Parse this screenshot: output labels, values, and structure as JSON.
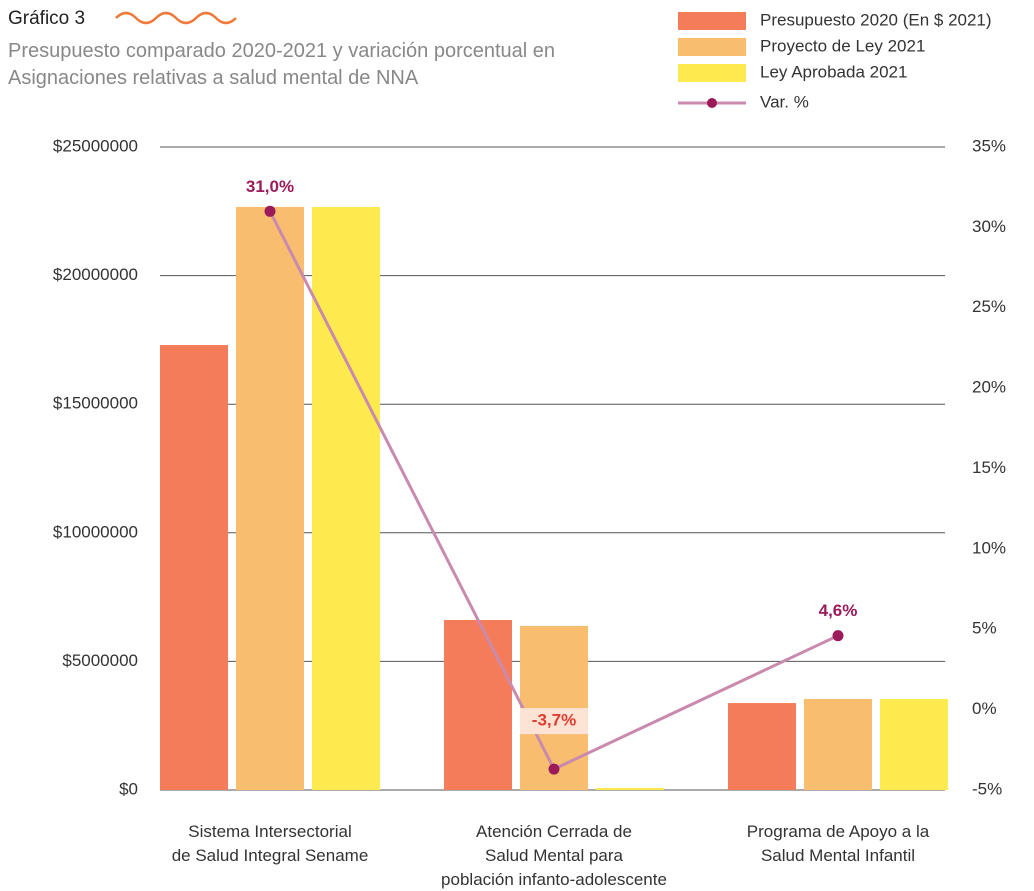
{
  "chart_data": {
    "type": "bar",
    "title": "Gráfico 3",
    "subtitle": "Presupuesto comparado 2020-2021 y variación porcentual en Asignaciones relativas a salud mental de NNA",
    "categories": [
      "Sistema Intersectorial\nde Salud Integral Sename",
      "Atención Cerrada de\nSalud Mental para\npoblación infanto-adolescente",
      "Programa de Apoyo a la\nSalud Mental Infantil"
    ],
    "series": [
      {
        "name": "Presupuesto 2020 (En $ 2021)",
        "color": "#f47c5a",
        "values": [
          17300000,
          6610000,
          3380000
        ]
      },
      {
        "name": "Proyecto de Ley 2021",
        "color": "#f8bd6e",
        "values": [
          22670000,
          6380000,
          3540000
        ]
      },
      {
        "name": "Ley Aprobada 2021",
        "color": "#fcea4e",
        "values": [
          22670000,
          80000,
          3540000
        ]
      },
      {
        "name": "Var. %",
        "type": "line",
        "axis": "y2",
        "color": "#c98aad",
        "marker_color": "#9b1b5a",
        "values": [
          31.0,
          -3.7,
          4.6
        ],
        "value_labels": [
          "31,0%",
          "-3,7%",
          "4,6%"
        ],
        "label_colors": [
          "#9b1b5a",
          "#e03c31",
          "#9b1b5a"
        ]
      }
    ],
    "ylim": [
      0,
      25000000
    ],
    "yticks": [
      {
        "value": 0,
        "label": "$0"
      },
      {
        "value": 5000000,
        "label": "$5000000"
      },
      {
        "value": 10000000,
        "label": "$10000000"
      },
      {
        "value": 15000000,
        "label": "$15000000"
      },
      {
        "value": 20000000,
        "label": "$20000000"
      },
      {
        "value": 25000000,
        "label": "$25000000"
      }
    ],
    "y2lim": [
      -5,
      35
    ],
    "y2ticks": [
      {
        "value": -5,
        "label": "-5%"
      },
      {
        "value": 0,
        "label": "0%"
      },
      {
        "value": 5,
        "label": "5%"
      },
      {
        "value": 10,
        "label": "10%"
      },
      {
        "value": 15,
        "label": "15%"
      },
      {
        "value": 20,
        "label": "20%"
      },
      {
        "value": 25,
        "label": "25%"
      },
      {
        "value": 30,
        "label": "30%"
      },
      {
        "value": 35,
        "label": "35%"
      }
    ],
    "grid": true,
    "legend": "top-right"
  }
}
